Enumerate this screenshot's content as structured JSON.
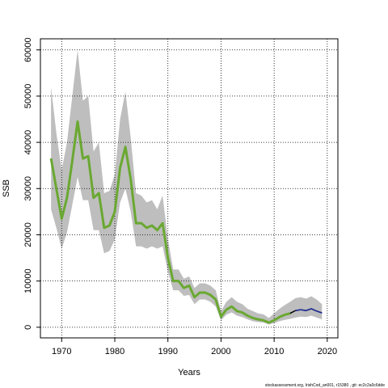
{
  "chart_data": {
    "type": "line",
    "xlabel": "Years",
    "ylabel": "SSB",
    "footnote": "stockassessment.org, IrishCod_an001, r15380 , git: ec2c2a0c6dde",
    "x": [
      1968,
      1969,
      1970,
      1971,
      1972,
      1973,
      1974,
      1975,
      1976,
      1977,
      1978,
      1979,
      1980,
      1981,
      1982,
      1983,
      1984,
      1985,
      1986,
      1987,
      1988,
      1989,
      1990,
      1991,
      1992,
      1993,
      1994,
      1995,
      1996,
      1997,
      1998,
      1999,
      2000,
      2001,
      2002,
      2003,
      2004,
      2005,
      2006,
      2007,
      2008,
      2009,
      2010,
      2011,
      2012,
      2013,
      2014,
      2015,
      2016,
      2017,
      2018,
      2019
    ],
    "band": {
      "color": "#bebebe",
      "upper": [
        52000,
        42000,
        34000,
        40000,
        50000,
        60000,
        49000,
        50000,
        38000,
        40000,
        29000,
        29500,
        33000,
        45000,
        51000,
        41000,
        29000,
        28500,
        27000,
        27500,
        25500,
        28500,
        19000,
        12500,
        12500,
        10500,
        11000,
        8500,
        9500,
        9500,
        9000,
        8000,
        3500,
        5500,
        6500,
        5500,
        5000,
        4000,
        3500,
        3000,
        2800,
        2000,
        3000,
        4000,
        4800,
        5500,
        6300,
        6500,
        6200,
        6700,
        6000,
        5000
      ],
      "lower": [
        25500,
        21500,
        17000,
        20500,
        26500,
        32500,
        27500,
        27500,
        21000,
        21000,
        16000,
        16500,
        19000,
        27000,
        30000,
        25000,
        17500,
        17500,
        17000,
        17500,
        17000,
        17500,
        12000,
        8000,
        8000,
        6800,
        7000,
        5000,
        6000,
        6000,
        5500,
        4500,
        1500,
        2700,
        3200,
        2500,
        2200,
        1700,
        1300,
        1100,
        1000,
        600,
        900,
        1300,
        1600,
        1800,
        2100,
        2300,
        2200,
        2500,
        2100,
        1700
      ]
    },
    "series": [
      {
        "color": "#000000",
        "width": 1.5,
        "values": [
          36500,
          30000,
          23500,
          28000,
          36000,
          44500,
          36500,
          37000,
          28000,
          29000,
          21500,
          22000,
          25000,
          34500,
          39000,
          32000,
          22500,
          22500,
          21500,
          22000,
          21000,
          22500,
          15000,
          10000,
          10000,
          8500,
          9000,
          6500,
          7500,
          7500,
          7000,
          6000,
          2300,
          3800,
          4500,
          3500,
          3200,
          2500,
          2000,
          1700,
          1500,
          1000,
          1500,
          2200,
          2700,
          3000,
          3600,
          3800,
          3600,
          4000,
          3500,
          3100
        ]
      },
      {
        "color": "#6aa832",
        "width": 3,
        "values": [
          36500,
          30000,
          23500,
          28000,
          36000,
          44500,
          36500,
          37000,
          28000,
          29000,
          21500,
          22000,
          25000,
          34500,
          39000,
          32000,
          22500,
          22500,
          21500,
          22000,
          21000,
          22500,
          15000,
          10000,
          10000,
          8500,
          9000,
          6500,
          7500,
          7500,
          7000,
          6000,
          2300,
          3800,
          4500,
          3500,
          3200,
          2500,
          2000,
          1700,
          1500,
          1000,
          1500,
          2200,
          2700,
          3000,
          null,
          null,
          null,
          null,
          null,
          null
        ]
      },
      {
        "color": "#1f2f9e",
        "width": 1.5,
        "values": [
          null,
          null,
          null,
          null,
          null,
          null,
          null,
          null,
          null,
          null,
          null,
          null,
          null,
          null,
          null,
          null,
          null,
          null,
          null,
          null,
          null,
          null,
          null,
          null,
          null,
          null,
          null,
          null,
          null,
          null,
          null,
          null,
          null,
          null,
          null,
          null,
          null,
          null,
          null,
          null,
          null,
          null,
          null,
          null,
          null,
          null,
          3600,
          3800,
          3600,
          4000,
          3500,
          3100
        ]
      }
    ],
    "xlim": [
      1966,
      2022
    ],
    "xticks": [
      1970,
      1980,
      1990,
      2000,
      2010,
      2020
    ],
    "ylim": [
      -2300,
      62400
    ],
    "yticks": [
      0,
      10000,
      20000,
      30000,
      40000,
      50000,
      60000
    ],
    "grid": true
  }
}
